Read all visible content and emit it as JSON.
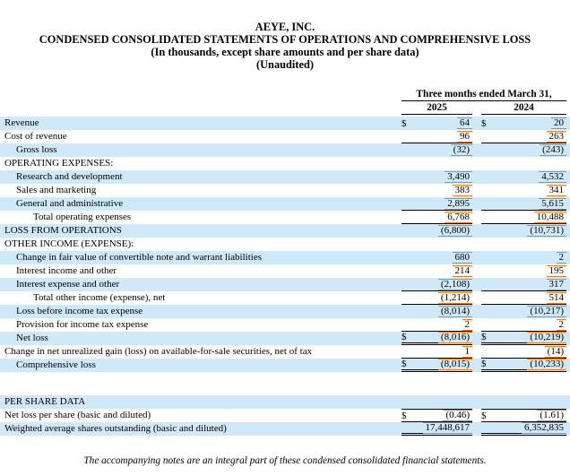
{
  "header": {
    "company": "AEYE, INC.",
    "title": "CONDENSED CONSOLIDATED STATEMENTS OF OPERATIONS AND COMPREHENSIVE LOSS",
    "subtitle1": "(In thousands, except share amounts and per share data)",
    "subtitle2": "(Unaudited)"
  },
  "table": {
    "period_header": "Three months ended March 31,",
    "columns": [
      "2025",
      "2024"
    ],
    "rows": [
      {
        "label": "Revenue",
        "indent": 0,
        "shade": true,
        "dollar": true,
        "v1": "64",
        "v2": "20",
        "border": ""
      },
      {
        "label": "Cost of revenue",
        "indent": 0,
        "shade": false,
        "dollar": false,
        "v1": "96",
        "v2": "263",
        "border": "b"
      },
      {
        "label": "Gross loss",
        "indent": 1,
        "shade": true,
        "dollar": false,
        "v1": "(32)",
        "v2": "(243)",
        "border": ""
      },
      {
        "label": "OPERATING EXPENSES:",
        "indent": 0,
        "shade": false,
        "dollar": false,
        "v1": null,
        "v2": null,
        "border": ""
      },
      {
        "label": "Research and development",
        "indent": 1,
        "shade": true,
        "dollar": false,
        "v1": "3,490",
        "v2": "4,532",
        "border": ""
      },
      {
        "label": "Sales and marketing",
        "indent": 1,
        "shade": false,
        "dollar": false,
        "v1": "383",
        "v2": "341",
        "border": ""
      },
      {
        "label": "General and administrative",
        "indent": 1,
        "shade": true,
        "dollar": false,
        "v1": "2,895",
        "v2": "5,615",
        "border": "b"
      },
      {
        "label": "Total operating expenses",
        "indent": 2,
        "shade": false,
        "dollar": false,
        "v1": "6,768",
        "v2": "10,488",
        "border": "b"
      },
      {
        "label": "LOSS FROM OPERATIONS",
        "indent": 0,
        "shade": true,
        "dollar": false,
        "v1": "(6,800)",
        "v2": "(10,731)",
        "border": ""
      },
      {
        "label": "OTHER INCOME (EXPENSE):",
        "indent": 0,
        "shade": false,
        "dollar": false,
        "v1": null,
        "v2": null,
        "border": ""
      },
      {
        "label": "Change in fair value of convertible note and warrant liabilities",
        "indent": 1,
        "shade": true,
        "dollar": false,
        "v1": "680",
        "v2": "2",
        "border": ""
      },
      {
        "label": "Interest income and other",
        "indent": 1,
        "shade": false,
        "dollar": false,
        "v1": "214",
        "v2": "195",
        "border": ""
      },
      {
        "label": "Interest expense and other",
        "indent": 1,
        "shade": true,
        "dollar": false,
        "v1": "(2,108)",
        "v2": "317",
        "border": "b"
      },
      {
        "label": "Total other income (expense), net",
        "indent": 2,
        "shade": false,
        "dollar": false,
        "v1": "(1,214)",
        "v2": "514",
        "border": "b"
      },
      {
        "label": "Loss before income tax expense",
        "indent": 1,
        "shade": true,
        "dollar": false,
        "v1": "(8,014)",
        "v2": "(10,217)",
        "border": ""
      },
      {
        "label": "Provision for income tax expense",
        "indent": 1,
        "shade": false,
        "dollar": false,
        "v1": "2",
        "v2": "2",
        "border": "b"
      },
      {
        "label": "Net loss",
        "indent": 1,
        "shade": true,
        "dollar": true,
        "v1": "(8,016)",
        "v2": "(10,219)",
        "border": "bb"
      },
      {
        "label": "Change in net unrealized gain (loss) on available-for-sale securities, net of tax",
        "indent": 0,
        "shade": false,
        "dollar": false,
        "v1": "1",
        "v2": "(14)",
        "border": "b"
      },
      {
        "label": "Comprehensive loss",
        "indent": 1,
        "shade": true,
        "dollar": true,
        "v1": "(8,015)",
        "v2": "(10,233)",
        "border": "bb"
      },
      {
        "type": "spacer"
      },
      {
        "label": "PER SHARE DATA",
        "indent": 0,
        "shade": true,
        "dollar": false,
        "v1": null,
        "v2": null,
        "border": ""
      },
      {
        "label": "Net loss per share (basic and diluted)",
        "indent": 0,
        "shade": false,
        "dollar": true,
        "v1": "(0.46)",
        "v2": "(1.61)",
        "border": "tb"
      },
      {
        "label": "Weighted average shares outstanding (basic and diluted)",
        "indent": 0,
        "shade": true,
        "dollar": false,
        "v1": "17,448,617",
        "v2": "6,352,835",
        "border": "bb"
      }
    ]
  },
  "footer": "The accompanying notes are an integral part of these condensed consolidated financial statements.",
  "colors": {
    "row_shade": "#cfe9f8",
    "xbrl_highlight": "#e87e17",
    "rule_line": "#000000"
  }
}
